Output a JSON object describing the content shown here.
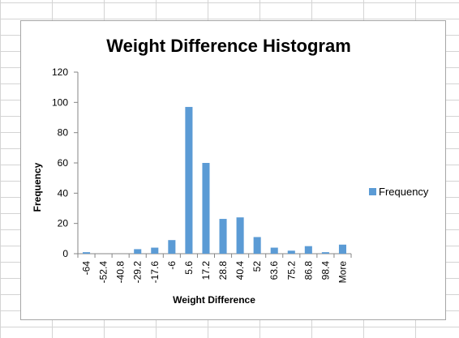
{
  "chart_data": {
    "type": "bar",
    "title": "Weight Difference Histogram",
    "xlabel": "Weight Difference",
    "ylabel": "Frequency",
    "categories": [
      "-64",
      "-52.4",
      "-40.8",
      "-29.2",
      "-17.6",
      "-6",
      "5.6",
      "17.2",
      "28.8",
      "40.4",
      "52",
      "63.6",
      "75.2",
      "86.8",
      "98.4",
      "More"
    ],
    "series": [
      {
        "name": "Frequency",
        "color": "#5b9bd5",
        "values": [
          1,
          0,
          0,
          3,
          4,
          9,
          97,
          60,
          23,
          24,
          11,
          4,
          2,
          5,
          1,
          6
        ]
      }
    ],
    "ylim": [
      0,
      120
    ],
    "yticks": [
      "0",
      "20",
      "40",
      "60",
      "80",
      "100",
      "120"
    ],
    "grid": false,
    "legend": "right"
  }
}
